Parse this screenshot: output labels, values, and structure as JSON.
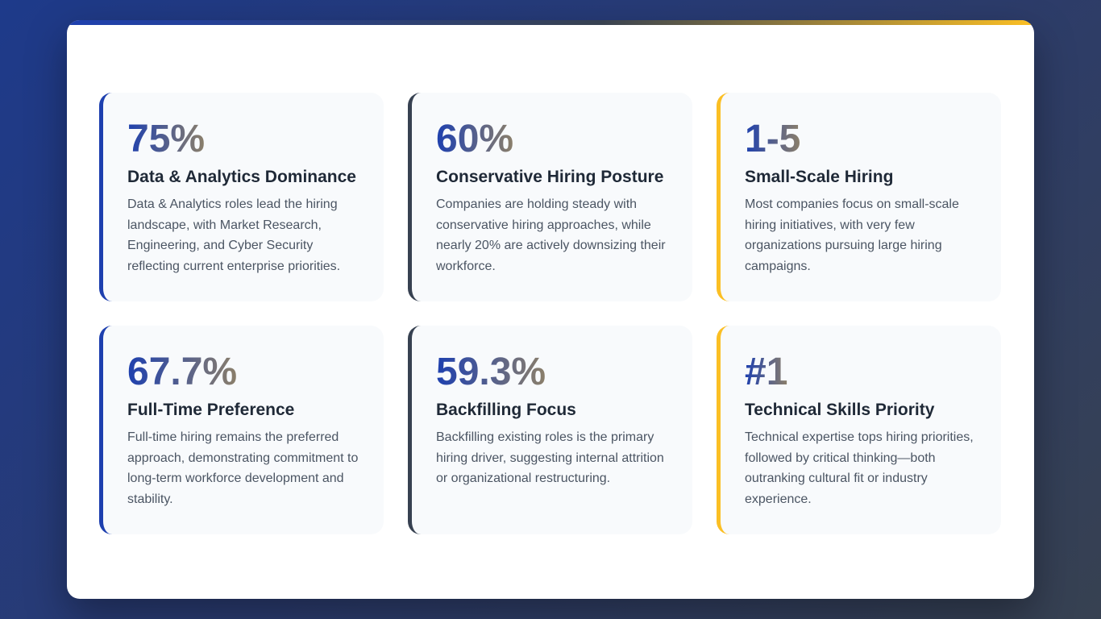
{
  "cards": [
    {
      "stat": "75%",
      "title": "Data & Analytics Dominance",
      "description": "Data & Analytics roles lead the hiring landscape, with Market Research, Engineering, and Cyber Security reflecting current enterprise priorities."
    },
    {
      "stat": "60%",
      "title": "Conservative Hiring Posture",
      "description": "Companies are holding steady with conservative hiring approaches, while nearly 20% are actively downsizing their workforce."
    },
    {
      "stat": "1-5",
      "title": "Small-Scale Hiring",
      "description": "Most companies focus on small-scale hiring initiatives, with very few organizations pursuing large hiring campaigns."
    },
    {
      "stat": "67.7%",
      "title": "Full-Time Preference",
      "description": "Full-time hiring remains the preferred approach, demonstrating commitment to long-term workforce development and stability."
    },
    {
      "stat": "59.3%",
      "title": "Backfilling Focus",
      "description": "Backfilling existing roles is the primary hiring driver, suggesting internal attrition or organizational restructuring."
    },
    {
      "stat": "#1",
      "title": "Technical Skills Priority",
      "description": "Technical expertise tops hiring priorities, followed by critical thinking—both outranking cultural fit or industry experience."
    }
  ],
  "colors": {
    "accent_blue": "#1e40af",
    "accent_gray": "#374151",
    "accent_gold": "#fbbf24"
  }
}
